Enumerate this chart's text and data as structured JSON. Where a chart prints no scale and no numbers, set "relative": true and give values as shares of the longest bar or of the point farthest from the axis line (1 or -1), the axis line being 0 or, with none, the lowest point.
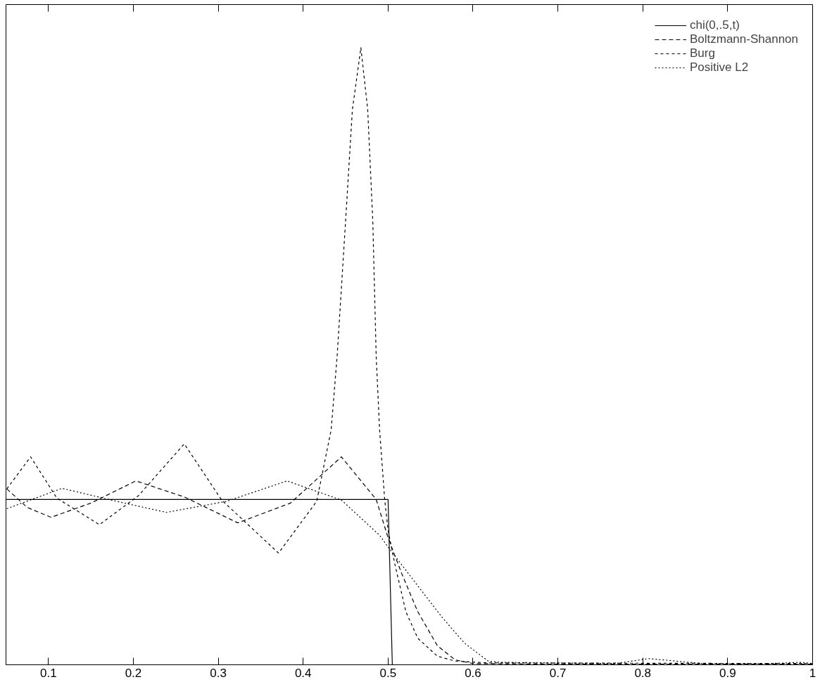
{
  "chart_data": {
    "type": "line",
    "relative": true,
    "xlim": [
      0.05,
      1.0
    ],
    "xticks": [
      0.1,
      0.2,
      0.3,
      0.4,
      0.5,
      0.6,
      0.7,
      0.8,
      0.9,
      1
    ],
    "grid": false,
    "legend": "top right",
    "marker": "none",
    "series": [
      {
        "name": "chi(0,.5,t)",
        "color": "#000000",
        "line_style": "solid",
        "x": [
          0.05,
          0.5,
          0.505,
          1.0
        ],
        "values": [
          0.268,
          0.268,
          0,
          0
        ]
      },
      {
        "name": "Boltzmann-Shannon",
        "color": "#000000",
        "line_style": "dashed",
        "x": [
          0.051,
          0.075,
          0.103,
          0.15,
          0.203,
          0.26,
          0.323,
          0.385,
          0.445,
          0.486,
          0.5,
          0.516,
          0.535,
          0.558,
          0.579,
          0.6,
          0.7,
          1.0
        ],
        "values": [
          0.285,
          0.255,
          0.239,
          0.262,
          0.298,
          0.272,
          0.23,
          0.262,
          0.337,
          0.268,
          0.206,
          0.148,
          0.086,
          0.031,
          0.008,
          0.002,
          0.001,
          0.001
        ]
      },
      {
        "name": "Burg",
        "color": "#000000",
        "line_style": "dashed",
        "x": [
          0.051,
          0.079,
          0.11,
          0.16,
          0.206,
          0.26,
          0.304,
          0.371,
          0.416,
          0.433,
          0.44,
          0.45,
          0.458,
          0.468,
          0.476,
          0.482,
          0.486,
          0.49,
          0.496,
          0.5,
          0.508,
          0.521,
          0.535,
          0.558,
          0.579,
          0.618,
          1.0
        ],
        "values": [
          0.285,
          0.337,
          0.27,
          0.227,
          0.274,
          0.358,
          0.267,
          0.181,
          0.265,
          0.381,
          0.5,
          0.72,
          0.9,
          1.0,
          0.9,
          0.72,
          0.5,
          0.381,
          0.268,
          0.218,
          0.163,
          0.086,
          0.043,
          0.014,
          0.006,
          0.003,
          0.002
        ]
      },
      {
        "name": "Positive L2",
        "color": "#000000",
        "line_style": "dotted",
        "x": [
          0.051,
          0.116,
          0.18,
          0.239,
          0.31,
          0.381,
          0.445,
          0.49,
          0.5,
          0.535,
          0.563,
          0.59,
          0.618,
          0.632,
          0.768,
          0.807,
          0.87,
          0.95,
          0.986,
          1.0
        ],
        "values": [
          0.253,
          0.286,
          0.265,
          0.247,
          0.265,
          0.298,
          0.267,
          0.21,
          0.191,
          0.128,
          0.078,
          0.035,
          0.006,
          0.004,
          0.002,
          0.01,
          0.002,
          0.002,
          0.004,
          0.002
        ]
      }
    ]
  }
}
